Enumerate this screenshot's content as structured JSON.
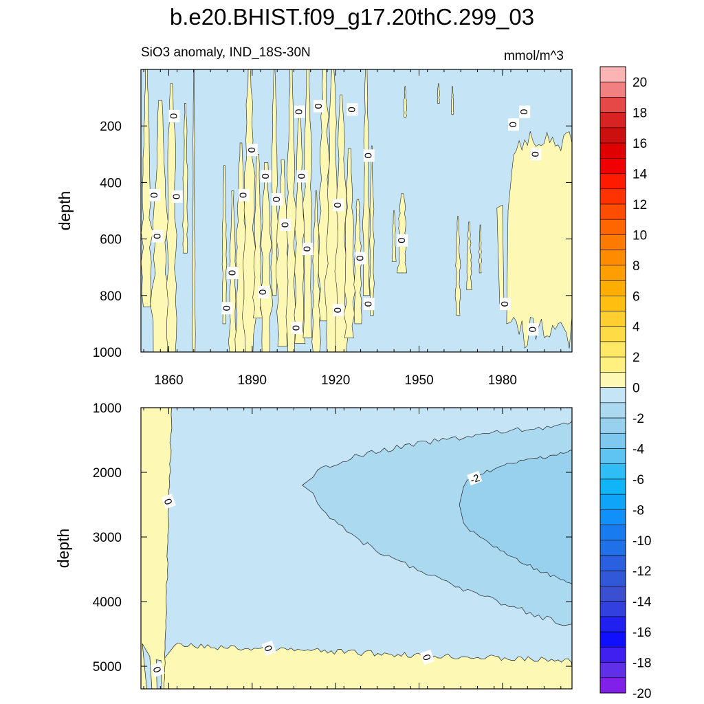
{
  "figure": {
    "title": "b.e20.BHIST.f09_g17.20thC.299_03",
    "subtitle_left": "SiO3 anomaly, IND_18S-30N",
    "subtitle_right": "mmol/m^3"
  },
  "colors": {
    "positive_fill": "#fdf9b4",
    "negative_fill_1": "#c5e4f5",
    "negative_fill_2": "#abd9f0",
    "negative_fill_3": "#98d1ee",
    "contour_line": "#222222"
  },
  "chart_data": [
    {
      "type": "heatmap",
      "panel": "upper",
      "ylabel": "depth",
      "x_range": [
        1850,
        2005
      ],
      "x_ticks": [
        1860,
        1890,
        1920,
        1950,
        1980
      ],
      "y_range": [
        0,
        1000
      ],
      "y_reversed": true,
      "y_ticks": [
        200,
        400,
        600,
        800,
        1000
      ],
      "contour_labels": [
        {
          "text": "0",
          "x": 1862,
          "y": 165
        },
        {
          "text": "0",
          "x": 1855,
          "y": 445
        },
        {
          "text": "0",
          "x": 1863,
          "y": 450
        },
        {
          "text": "0",
          "x": 1856,
          "y": 590
        },
        {
          "text": "0",
          "x": 1890,
          "y": 285
        },
        {
          "text": "0",
          "x": 1887,
          "y": 445
        },
        {
          "text": "0",
          "x": 1883,
          "y": 720
        },
        {
          "text": "0",
          "x": 1881,
          "y": 845
        },
        {
          "text": "0",
          "x": 1907,
          "y": 150
        },
        {
          "text": "0",
          "x": 1914,
          "y": 130
        },
        {
          "text": "0",
          "x": 1926,
          "y": 142
        },
        {
          "text": "0",
          "x": 1932,
          "y": 305
        },
        {
          "text": "0",
          "x": 1908,
          "y": 378
        },
        {
          "text": "0",
          "x": 1895,
          "y": 378
        },
        {
          "text": "0",
          "x": 1899,
          "y": 460
        },
        {
          "text": "0",
          "x": 1902,
          "y": 550
        },
        {
          "text": "0",
          "x": 1910,
          "y": 635
        },
        {
          "text": "0",
          "x": 1921,
          "y": 480
        },
        {
          "text": "0",
          "x": 1929,
          "y": 668
        },
        {
          "text": "0",
          "x": 1894,
          "y": 788
        },
        {
          "text": "0",
          "x": 1906,
          "y": 915
        },
        {
          "text": "0",
          "x": 1921,
          "y": 852
        },
        {
          "text": "0",
          "x": 1932,
          "y": 830
        },
        {
          "text": "0",
          "x": 1944,
          "y": 605
        },
        {
          "text": "0",
          "x": 1988,
          "y": 150
        },
        {
          "text": "0",
          "x": 1984,
          "y": 195
        },
        {
          "text": "0",
          "x": 1992,
          "y": 300
        },
        {
          "text": "0",
          "x": 1981,
          "y": 830
        },
        {
          "text": "0",
          "x": 1991,
          "y": 920
        }
      ]
    },
    {
      "type": "heatmap",
      "panel": "lower",
      "ylabel": "depth",
      "x_range": [
        1850,
        2005
      ],
      "y_range": [
        1000,
        5350
      ],
      "y_reversed": true,
      "y_ticks": [
        1000,
        2000,
        3000,
        4000,
        5000
      ],
      "contour_labels": [
        {
          "text": "0",
          "x": 1860,
          "y": 2450
        },
        {
          "text": "0",
          "x": 1856,
          "y": 5050
        },
        {
          "text": "0",
          "x": 1896,
          "y": 4720
        },
        {
          "text": "0",
          "x": 1953,
          "y": 4860
        },
        {
          "text": "-2",
          "x": 1970,
          "y": 2090
        }
      ]
    }
  ],
  "colorbar": {
    "labels": [
      "20",
      "18",
      "16",
      "14",
      "12",
      "10",
      "8",
      "6",
      "4",
      "2",
      "0",
      "-2",
      "-4",
      "-6",
      "-8",
      "-10",
      "-12",
      "-14",
      "-16",
      "-18",
      "-20"
    ],
    "colors_top_to_bottom": [
      "#fbb4b4",
      "#f28080",
      "#e64848",
      "#d92323",
      "#cc1010",
      "#e00000",
      "#f00000",
      "#ff1a00",
      "#ff3300",
      "#ff4d00",
      "#ff6600",
      "#ff7a00",
      "#ff8c00",
      "#ff9e00",
      "#ffae00",
      "#ffbe10",
      "#ffcf30",
      "#ffdc45",
      "#ffe866",
      "#fff080",
      "#fdf9b4",
      "#c5e4f5",
      "#abd9f0",
      "#98d1ee",
      "#7ec8f0",
      "#60c4f2",
      "#30bdf5",
      "#10b5f8",
      "#10a4f8",
      "#1090f8",
      "#187cf0",
      "#2070e8",
      "#2a60e0",
      "#3058d8",
      "#3a50d0",
      "#3340e0",
      "#2020f0",
      "#1010ff",
      "#3f20f0",
      "#6030e8",
      "#8020e8"
    ]
  }
}
